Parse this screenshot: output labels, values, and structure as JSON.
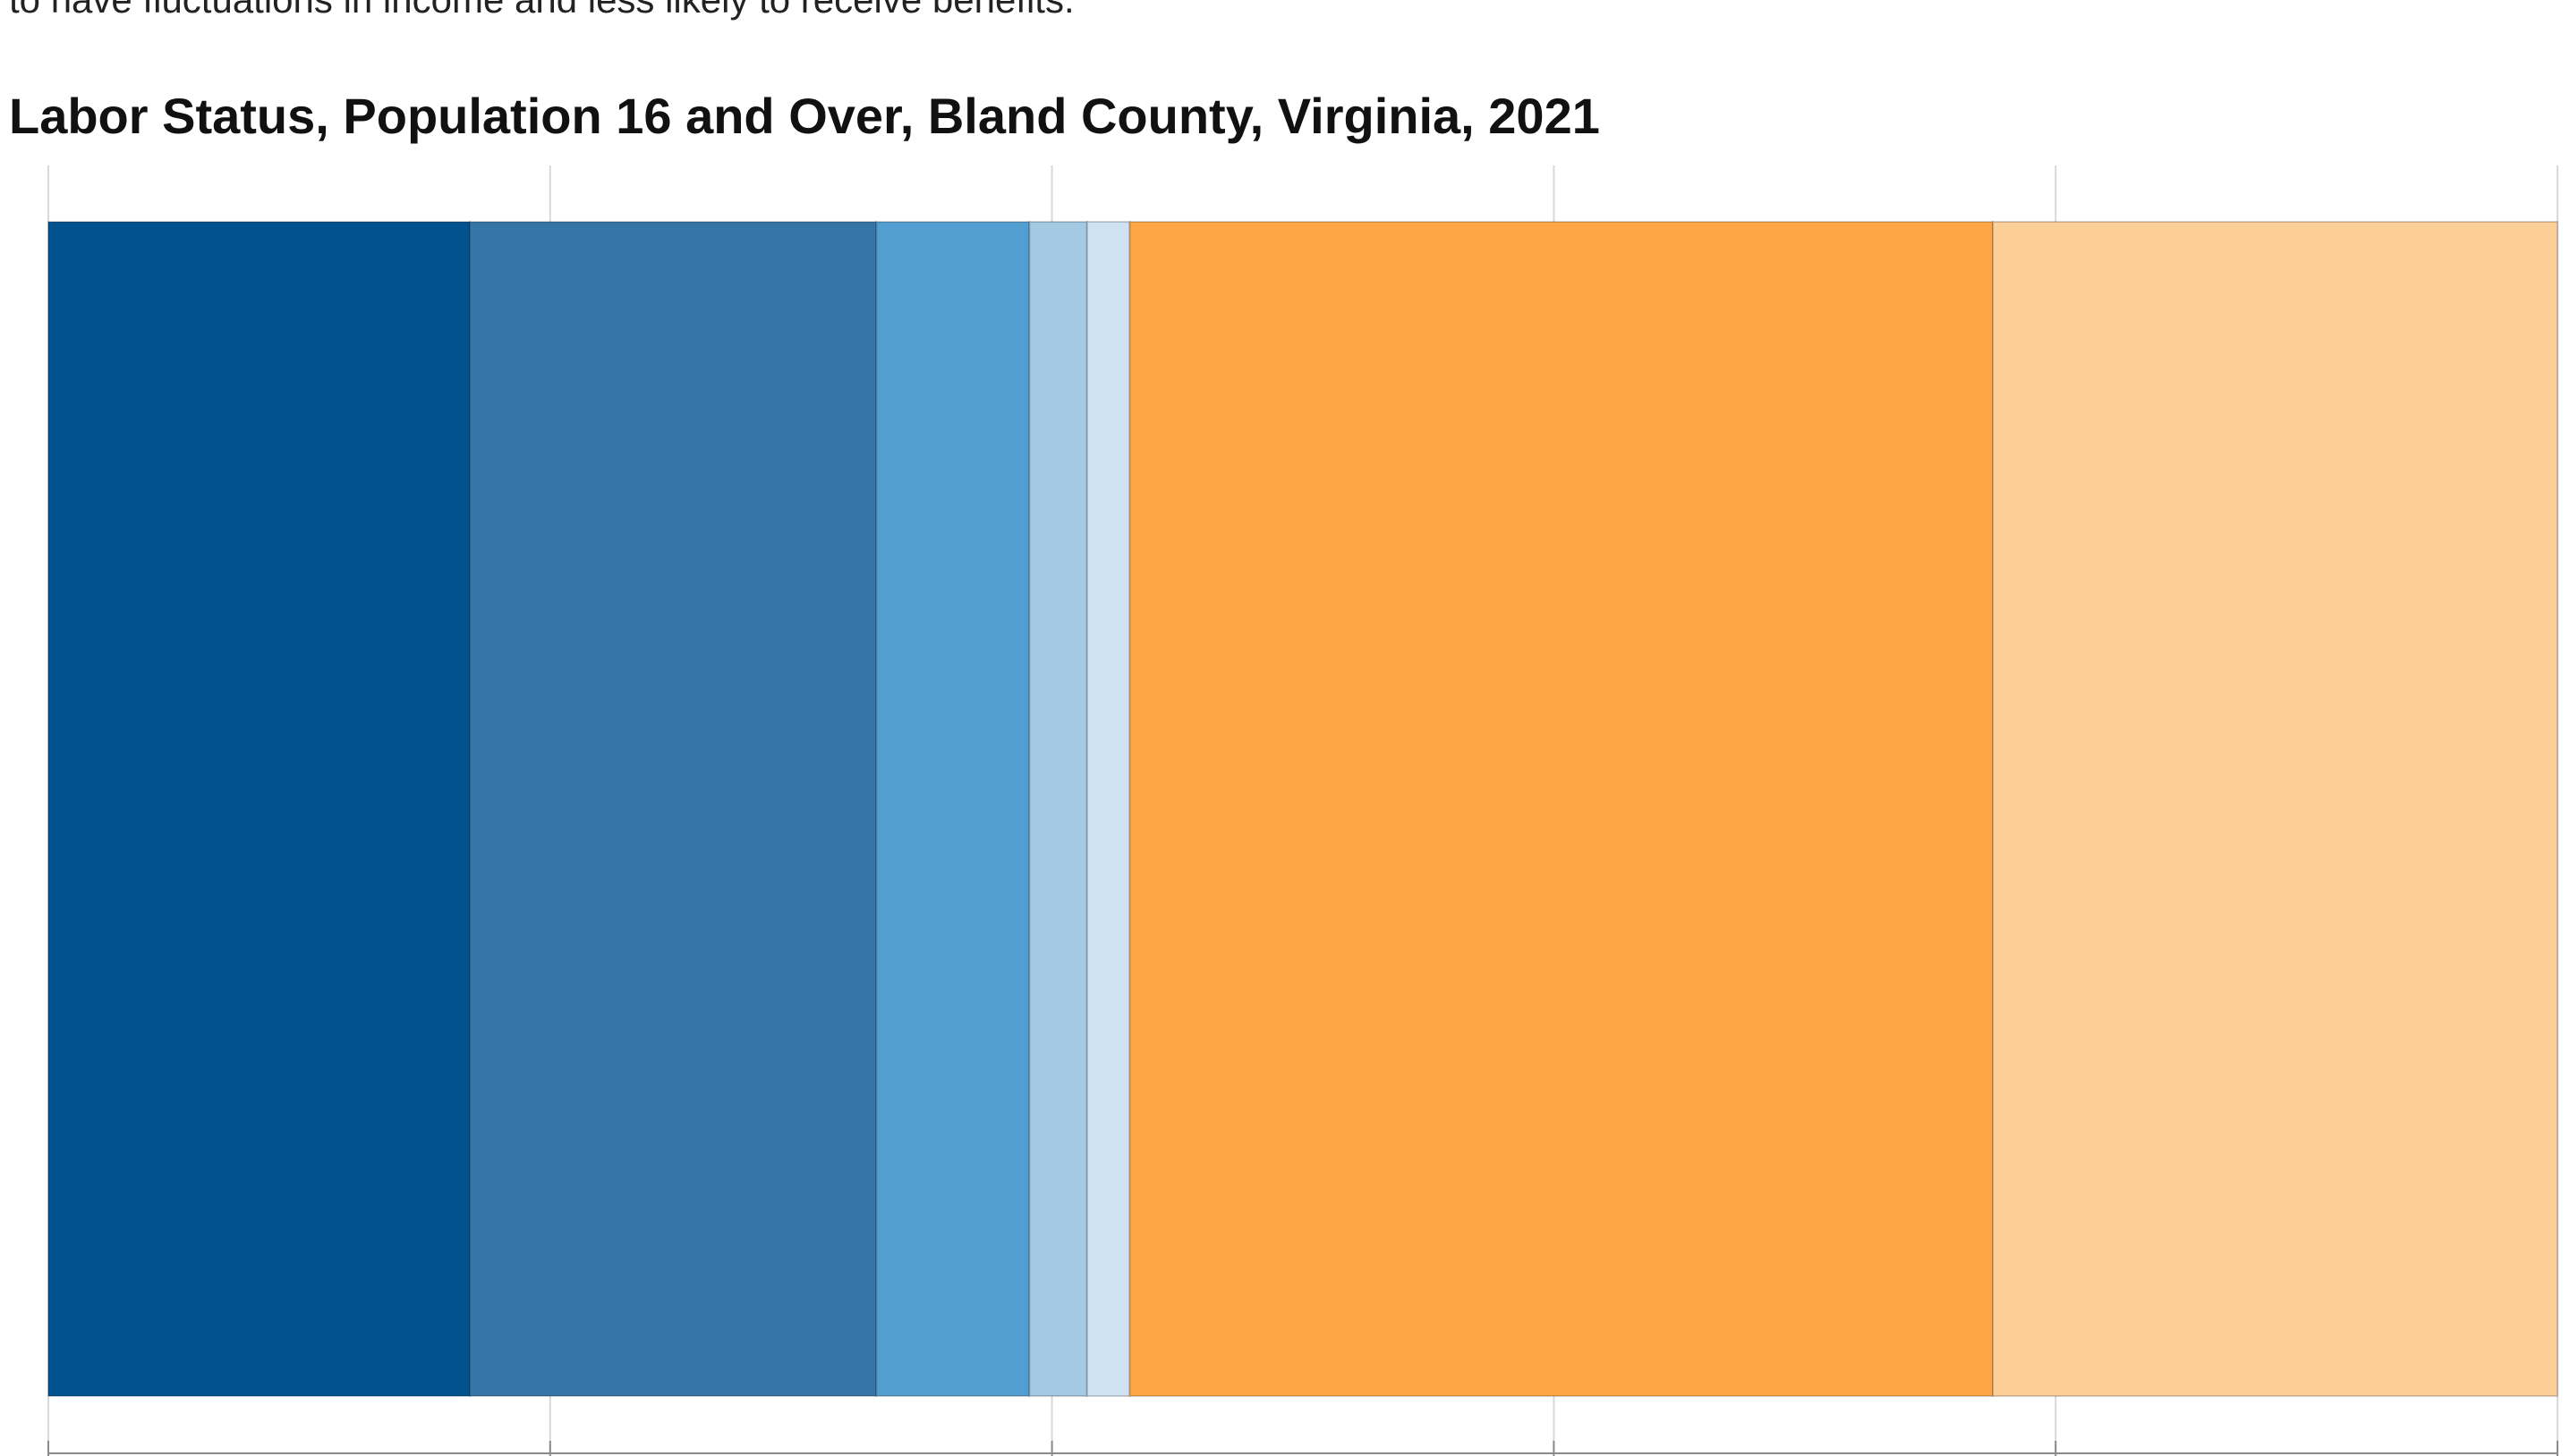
{
  "intro": {
    "text": "to have fluctuations in income and less likely to receive benefits."
  },
  "chart_data": {
    "type": "bar",
    "orientation": "horizontal",
    "stacked": true,
    "title": "Labor Status, Population 16 and Over, Bland County, Virginia, 2021",
    "xlabel": "",
    "ylabel": "",
    "xlim": [
      0,
      100
    ],
    "unit": "percent",
    "grid": true,
    "legend": "none",
    "categories": [
      ""
    ],
    "series": [
      {
        "values": [
          16.8
        ],
        "color": "#02528f"
      },
      {
        "values": [
          16.2
        ],
        "color": "#3576a6"
      },
      {
        "values": [
          6.1
        ],
        "color": "#539ed0"
      },
      {
        "values": [
          2.3
        ],
        "color": "#a3c9e3"
      },
      {
        "values": [
          1.7
        ],
        "color": "#cfe2f1"
      },
      {
        "values": [
          34.4
        ],
        "color": "#fea645"
      },
      {
        "values": [
          22.5
        ],
        "color": "#fdcf98"
      }
    ]
  }
}
